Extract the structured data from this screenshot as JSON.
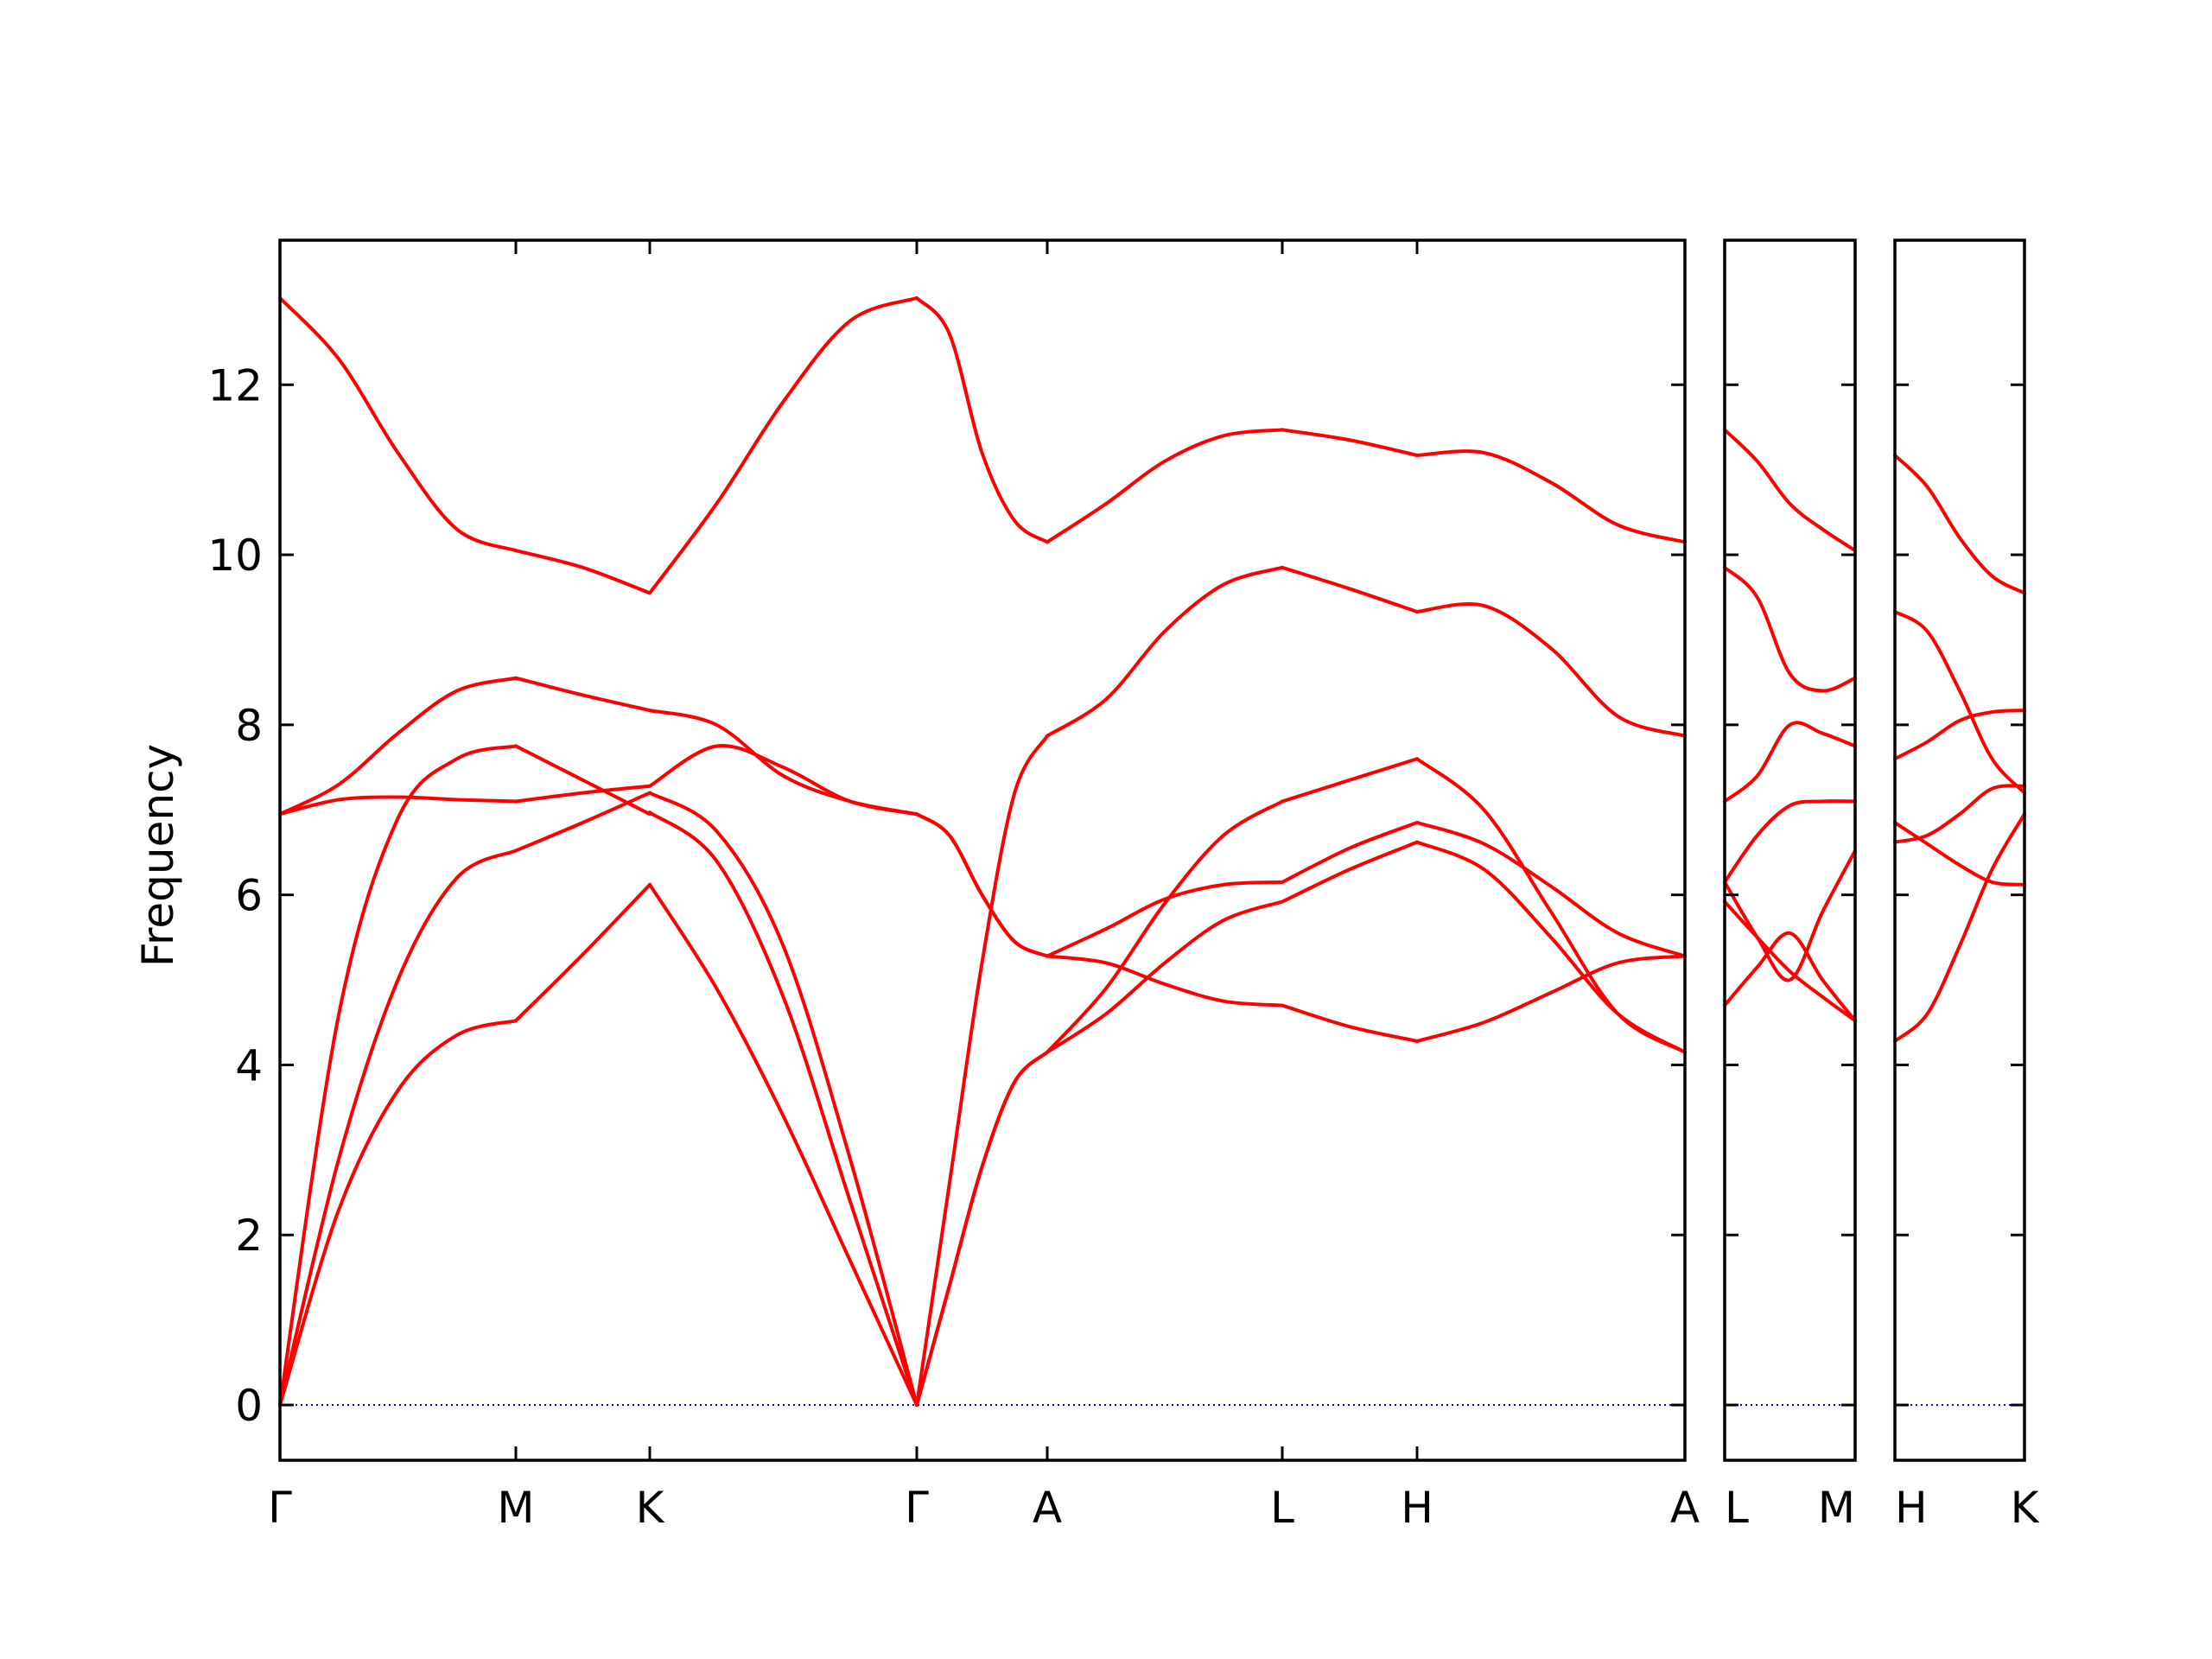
{
  "chart_data": {
    "type": "line",
    "title": "",
    "ylabel": "Frequency",
    "ylim": [
      -0.65,
      13.7
    ],
    "yticks": [
      0,
      2,
      4,
      6,
      8,
      10,
      12
    ],
    "ytick_labels": [
      "0",
      "2",
      "4",
      "6",
      "8",
      "10",
      "12"
    ],
    "zero_line": {
      "y": 0,
      "color": "#0000ff",
      "style": "dotted"
    },
    "line_color": "#ff0000",
    "grid": false,
    "legend": "none",
    "panels": [
      {
        "name": "main",
        "path_labels": [
          "Γ",
          "M",
          "K",
          "Γ",
          "A",
          "L",
          "H",
          "A"
        ],
        "segments": [
          {
            "from": "Γ",
            "to": "M",
            "x": [
              0,
              0.25,
              0.5,
              0.75,
              1
            ],
            "bands": [
              [
                0,
                2.3,
                3.7,
                4.35,
                4.52
              ],
              [
                0,
                2.9,
                5.0,
                6.2,
                6.52
              ],
              [
                0,
                4.6,
                6.9,
                7.6,
                7.75
              ],
              [
                6.95,
                7.12,
                7.15,
                7.12,
                7.1
              ],
              [
                6.95,
                7.3,
                7.9,
                8.4,
                8.55
              ],
              [
                13.02,
                12.3,
                11.2,
                10.3,
                10.05
              ]
            ]
          },
          {
            "from": "M",
            "to": "K",
            "x": [
              0,
              0.5,
              1
            ],
            "bands": [
              [
                4.52,
                5.3,
                6.12
              ],
              [
                6.52,
                6.85,
                7.2
              ],
              [
                7.75,
                7.35,
                6.95
              ],
              [
                7.1,
                7.2,
                7.28
              ],
              [
                8.55,
                8.35,
                8.17
              ],
              [
                10.05,
                9.85,
                9.55
              ]
            ]
          },
          {
            "from": "K",
            "to": "Γ",
            "x": [
              0,
              0.25,
              0.5,
              0.75,
              1
            ],
            "bands": [
              [
                6.12,
                4.9,
                3.4,
                1.7,
                0
              ],
              [
                6.97,
                6.4,
                4.8,
                2.4,
                0
              ],
              [
                7.2,
                6.75,
                5.4,
                2.9,
                0
              ],
              [
                7.28,
                7.75,
                7.5,
                7.1,
                6.95
              ],
              [
                8.17,
                8.0,
                7.4,
                7.1,
                6.95
              ],
              [
                9.55,
                10.6,
                11.8,
                12.75,
                13.02
              ]
            ]
          },
          {
            "from": "Γ",
            "to": "A",
            "x": [
              0,
              0.25,
              0.5,
              0.75,
              1
            ],
            "bands": [
              [
                0,
                1.4,
                2.8,
                3.8,
                4.15
              ],
              [
                0,
                1.4,
                2.8,
                3.8,
                4.15
              ],
              [
                0,
                2.6,
                5.2,
                7.2,
                7.87
              ],
              [
                6.95,
                6.7,
                6.0,
                5.45,
                5.28
              ],
              [
                6.95,
                6.7,
                6.0,
                5.45,
                5.28
              ],
              [
                13.02,
                12.6,
                11.2,
                10.4,
                10.15
              ]
            ]
          },
          {
            "from": "A",
            "to": "L",
            "x": [
              0,
              0.25,
              0.5,
              0.75,
              1
            ],
            "bands": [
              [
                4.15,
                4.6,
                5.2,
                5.7,
                5.92
              ],
              [
                4.15,
                4.9,
                5.9,
                6.7,
                7.1
              ],
              [
                5.28,
                5.6,
                5.95,
                6.12,
                6.15
              ],
              [
                5.28,
                5.2,
                4.95,
                4.75,
                4.7
              ],
              [
                7.87,
                8.3,
                9.1,
                9.65,
                9.85
              ],
              [
                10.15,
                10.6,
                11.1,
                11.4,
                11.47
              ]
            ]
          },
          {
            "from": "L",
            "to": "H",
            "x": [
              0,
              0.5,
              1
            ],
            "bands": [
              [
                5.92,
                6.3,
                6.62
              ],
              [
                6.15,
                6.55,
                6.85
              ],
              [
                7.1,
                7.35,
                7.6
              ],
              [
                4.7,
                4.45,
                4.28
              ],
              [
                9.85,
                9.6,
                9.33
              ],
              [
                11.47,
                11.35,
                11.17
              ]
            ]
          },
          {
            "from": "H",
            "to": "A",
            "x": [
              0,
              0.25,
              0.5,
              0.75,
              1
            ],
            "bands": [
              [
                6.62,
                6.3,
                5.5,
                4.6,
                4.15
              ],
              [
                6.85,
                6.6,
                6.1,
                5.55,
                5.28
              ],
              [
                7.6,
                7.0,
                5.8,
                4.6,
                4.15
              ],
              [
                4.28,
                4.5,
                4.85,
                5.2,
                5.28
              ],
              [
                9.33,
                9.4,
                8.9,
                8.1,
                7.87
              ],
              [
                11.17,
                11.2,
                10.85,
                10.35,
                10.15
              ]
            ]
          }
        ]
      },
      {
        "name": "L-M",
        "path_labels": [
          "L",
          "M"
        ],
        "segments": [
          {
            "from": "L",
            "to": "M",
            "x": [
              0,
              0.25,
              0.5,
              0.75,
              1
            ],
            "bands": [
              [
                4.7,
                5.15,
                5.55,
                5.0,
                4.52
              ],
              [
                5.92,
                5.5,
                5.1,
                4.8,
                4.52
              ],
              [
                6.15,
                6.7,
                7.05,
                7.1,
                7.1
              ],
              [
                6.15,
                5.5,
                5.0,
                5.8,
                6.52
              ],
              [
                7.1,
                7.4,
                8.0,
                7.9,
                7.75
              ],
              [
                9.85,
                9.5,
                8.6,
                8.4,
                8.55
              ],
              [
                11.47,
                11.1,
                10.6,
                10.3,
                10.05
              ]
            ]
          }
        ]
      },
      {
        "name": "H-K",
        "path_labels": [
          "H",
          "K"
        ],
        "segments": [
          {
            "from": "H",
            "to": "K",
            "x": [
              0,
              0.25,
              0.5,
              0.75,
              1
            ],
            "bands": [
              [
                4.28,
                4.6,
                5.4,
                6.3,
                6.95
              ],
              [
                6.62,
                6.7,
                6.95,
                7.25,
                7.28
              ],
              [
                6.85,
                6.6,
                6.35,
                6.15,
                6.12
              ],
              [
                7.6,
                7.8,
                8.05,
                8.15,
                8.17
              ],
              [
                9.33,
                9.1,
                8.4,
                7.6,
                7.2
              ],
              [
                11.17,
                10.8,
                10.2,
                9.75,
                9.55
              ]
            ]
          }
        ]
      }
    ]
  }
}
